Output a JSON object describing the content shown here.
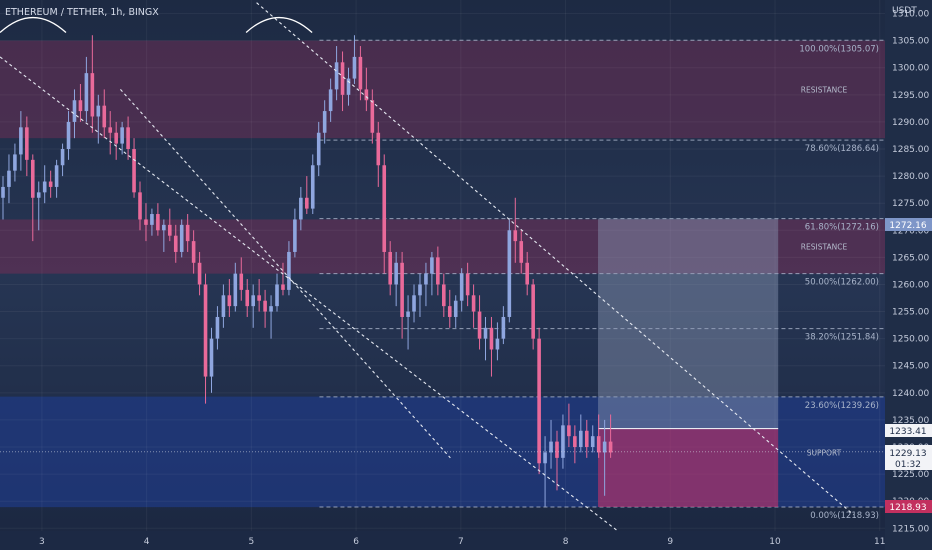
{
  "header": {
    "title": "ETHEREUM / TETHER, 1h, BINGX"
  },
  "price_axis": {
    "currency": "USDT",
    "ticks": [
      "1310.00",
      "1305.00",
      "1300.00",
      "1295.00",
      "1290.00",
      "1285.00",
      "1280.00",
      "1275.00",
      "1270.00",
      "1265.00",
      "1260.00",
      "1255.00",
      "1250.00",
      "1245.00",
      "1240.00",
      "1235.00",
      "1230.00",
      "1225.00",
      "1220.00",
      "1215.00"
    ]
  },
  "time_axis": {
    "ticks": [
      "3",
      "4",
      "5",
      "6",
      "7",
      "8",
      "9",
      "10",
      "11"
    ]
  },
  "badges": {
    "level_61": "1272.16",
    "tp": "1233.41",
    "last_price": "1229.13",
    "countdown": "01:32",
    "stop": "1218.93"
  },
  "zones": {
    "resistance_label": "RESISTANCE",
    "support_label": "SUPPORT"
  },
  "fib": [
    {
      "label": "100.00%(1305.07)",
      "price": 1305.07
    },
    {
      "label": "78.60%(1286.64)",
      "price": 1286.64
    },
    {
      "label": "61.80%(1272.16)",
      "price": 1272.16
    },
    {
      "label": "50.00%(1262.00)",
      "price": 1262.0
    },
    {
      "label": "38.20%(1251.84)",
      "price": 1251.84
    },
    {
      "label": "23.60%(1239.26)",
      "price": 1239.26
    },
    {
      "label": "0.00%(1218.93)",
      "price": 1218.93
    }
  ],
  "colors": {
    "background": "#1f2d47",
    "bull": "#8fa6df",
    "bear": "#e96a9a",
    "resistance_zone": "#6b2f55",
    "support_zone": "#1f3a86"
  },
  "chart_data": {
    "type": "candlestick",
    "title": "ETHEREUM / TETHER, 1h, BINGX",
    "y_unit": "USDT",
    "ylim": [
      1214.5,
      1312.5
    ],
    "xlim": [
      2.6,
      11.05
    ],
    "x_ticks": [
      3,
      4,
      5,
      6,
      7,
      8,
      9,
      10,
      11
    ],
    "last_price": 1229.13,
    "zones": [
      {
        "label": "RESISTANCE",
        "from": 1287.0,
        "to": 1305.0
      },
      {
        "label": "RESISTANCE",
        "from": 1262.0,
        "to": 1272.0
      },
      {
        "label": "SUPPORT",
        "from": 1218.9,
        "to": 1239.3
      }
    ],
    "fib_levels": [
      {
        "ratio": "100.00%",
        "price": 1305.07
      },
      {
        "ratio": "78.60%",
        "price": 1286.64
      },
      {
        "ratio": "61.80%",
        "price": 1272.16
      },
      {
        "ratio": "50.00%",
        "price": 1262.0
      },
      {
        "ratio": "38.20%",
        "price": 1251.84
      },
      {
        "ratio": "23.60%",
        "price": 1239.26
      },
      {
        "ratio": "0.00%",
        "price": 1218.93
      }
    ],
    "position": {
      "x_start": 8.31,
      "x_end": 10.03,
      "entry": 1233.41,
      "target": 1272.16,
      "stop": 1218.93
    },
    "trend_lines": [
      {
        "from": [
          2.6,
          1302.0
        ],
        "to": [
          8.6,
          1213.0
        ]
      },
      {
        "from": [
          3.75,
          1296.0
        ],
        "to": [
          6.9,
          1228.0
        ]
      },
      {
        "from": [
          5.05,
          1312.0
        ],
        "to": [
          10.75,
          1217.5
        ]
      }
    ],
    "arcs": [
      {
        "x_start": 2.6,
        "x_end": 3.23,
        "price": 1306.5
      },
      {
        "x_start": 4.95,
        "x_end": 5.58,
        "price": 1306.5
      }
    ],
    "candles": [
      {
        "o": 1276,
        "h": 1280,
        "l": 1272,
        "c": 1278
      },
      {
        "o": 1278,
        "h": 1284,
        "l": 1275,
        "c": 1281
      },
      {
        "o": 1281,
        "h": 1286,
        "l": 1279,
        "c": 1284
      },
      {
        "o": 1284,
        "h": 1292,
        "l": 1281,
        "c": 1289
      },
      {
        "o": 1289,
        "h": 1291,
        "l": 1280,
        "c": 1283
      },
      {
        "o": 1283,
        "h": 1284,
        "l": 1268,
        "c": 1276
      },
      {
        "o": 1276,
        "h": 1279,
        "l": 1270,
        "c": 1277
      },
      {
        "o": 1277,
        "h": 1282,
        "l": 1275,
        "c": 1279
      },
      {
        "o": 1279,
        "h": 1281,
        "l": 1276,
        "c": 1278
      },
      {
        "o": 1278,
        "h": 1283,
        "l": 1276,
        "c": 1282
      },
      {
        "o": 1282,
        "h": 1286,
        "l": 1280,
        "c": 1285
      },
      {
        "o": 1285,
        "h": 1292,
        "l": 1283,
        "c": 1290
      },
      {
        "o": 1290,
        "h": 1296,
        "l": 1287,
        "c": 1294
      },
      {
        "o": 1294,
        "h": 1297,
        "l": 1290,
        "c": 1292
      },
      {
        "o": 1292,
        "h": 1302,
        "l": 1290,
        "c": 1299
      },
      {
        "o": 1299,
        "h": 1306,
        "l": 1288,
        "c": 1291
      },
      {
        "o": 1291,
        "h": 1295,
        "l": 1286,
        "c": 1293
      },
      {
        "o": 1293,
        "h": 1296,
        "l": 1287,
        "c": 1289
      },
      {
        "o": 1289,
        "h": 1292,
        "l": 1284,
        "c": 1288
      },
      {
        "o": 1288,
        "h": 1290,
        "l": 1283,
        "c": 1286
      },
      {
        "o": 1286,
        "h": 1290,
        "l": 1284,
        "c": 1289
      },
      {
        "o": 1289,
        "h": 1291,
        "l": 1283,
        "c": 1285
      },
      {
        "o": 1285,
        "h": 1287,
        "l": 1276,
        "c": 1277
      },
      {
        "o": 1277,
        "h": 1279,
        "l": 1270,
        "c": 1272
      },
      {
        "o": 1272,
        "h": 1275,
        "l": 1268,
        "c": 1271
      },
      {
        "o": 1271,
        "h": 1274,
        "l": 1269,
        "c": 1273
      },
      {
        "o": 1273,
        "h": 1275,
        "l": 1269,
        "c": 1270
      },
      {
        "o": 1270,
        "h": 1272,
        "l": 1266,
        "c": 1271
      },
      {
        "o": 1271,
        "h": 1274,
        "l": 1268,
        "c": 1269
      },
      {
        "o": 1269,
        "h": 1271,
        "l": 1264,
        "c": 1266
      },
      {
        "o": 1266,
        "h": 1272,
        "l": 1265,
        "c": 1271
      },
      {
        "o": 1271,
        "h": 1273,
        "l": 1266,
        "c": 1268
      },
      {
        "o": 1268,
        "h": 1270,
        "l": 1262,
        "c": 1264
      },
      {
        "o": 1264,
        "h": 1266,
        "l": 1258,
        "c": 1260
      },
      {
        "o": 1260,
        "h": 1262,
        "l": 1238,
        "c": 1243
      },
      {
        "o": 1243,
        "h": 1252,
        "l": 1240,
        "c": 1250
      },
      {
        "o": 1250,
        "h": 1256,
        "l": 1248,
        "c": 1254
      },
      {
        "o": 1254,
        "h": 1260,
        "l": 1252,
        "c": 1258
      },
      {
        "o": 1258,
        "h": 1261,
        "l": 1254,
        "c": 1256
      },
      {
        "o": 1256,
        "h": 1264,
        "l": 1255,
        "c": 1262
      },
      {
        "o": 1262,
        "h": 1265,
        "l": 1257,
        "c": 1259
      },
      {
        "o": 1259,
        "h": 1261,
        "l": 1254,
        "c": 1256
      },
      {
        "o": 1256,
        "h": 1260,
        "l": 1252,
        "c": 1258
      },
      {
        "o": 1258,
        "h": 1261,
        "l": 1255,
        "c": 1257
      },
      {
        "o": 1257,
        "h": 1259,
        "l": 1252,
        "c": 1255
      },
      {
        "o": 1255,
        "h": 1258,
        "l": 1250,
        "c": 1256
      },
      {
        "o": 1256,
        "h": 1262,
        "l": 1255,
        "c": 1260
      },
      {
        "o": 1260,
        "h": 1264,
        "l": 1258,
        "c": 1259
      },
      {
        "o": 1259,
        "h": 1268,
        "l": 1258,
        "c": 1266
      },
      {
        "o": 1266,
        "h": 1274,
        "l": 1265,
        "c": 1272
      },
      {
        "o": 1272,
        "h": 1278,
        "l": 1270,
        "c": 1276
      },
      {
        "o": 1276,
        "h": 1280,
        "l": 1273,
        "c": 1274
      },
      {
        "o": 1274,
        "h": 1284,
        "l": 1273,
        "c": 1282
      },
      {
        "o": 1282,
        "h": 1290,
        "l": 1280,
        "c": 1288
      },
      {
        "o": 1288,
        "h": 1294,
        "l": 1286,
        "c": 1292
      },
      {
        "o": 1292,
        "h": 1298,
        "l": 1290,
        "c": 1296
      },
      {
        "o": 1296,
        "h": 1304,
        "l": 1294,
        "c": 1301
      },
      {
        "o": 1301,
        "h": 1303,
        "l": 1292,
        "c": 1295
      },
      {
        "o": 1295,
        "h": 1300,
        "l": 1293,
        "c": 1298
      },
      {
        "o": 1298,
        "h": 1306,
        "l": 1297,
        "c": 1302
      },
      {
        "o": 1302,
        "h": 1304,
        "l": 1294,
        "c": 1296
      },
      {
        "o": 1296,
        "h": 1300,
        "l": 1292,
        "c": 1294
      },
      {
        "o": 1294,
        "h": 1296,
        "l": 1286,
        "c": 1288
      },
      {
        "o": 1288,
        "h": 1290,
        "l": 1278,
        "c": 1282
      },
      {
        "o": 1282,
        "h": 1284,
        "l": 1262,
        "c": 1266
      },
      {
        "o": 1266,
        "h": 1268,
        "l": 1258,
        "c": 1260
      },
      {
        "o": 1260,
        "h": 1266,
        "l": 1256,
        "c": 1264
      },
      {
        "o": 1264,
        "h": 1266,
        "l": 1250,
        "c": 1254
      },
      {
        "o": 1254,
        "h": 1258,
        "l": 1248,
        "c": 1255
      },
      {
        "o": 1255,
        "h": 1260,
        "l": 1253,
        "c": 1258
      },
      {
        "o": 1258,
        "h": 1262,
        "l": 1254,
        "c": 1260
      },
      {
        "o": 1260,
        "h": 1264,
        "l": 1256,
        "c": 1262
      },
      {
        "o": 1262,
        "h": 1266,
        "l": 1258,
        "c": 1265
      },
      {
        "o": 1265,
        "h": 1267,
        "l": 1258,
        "c": 1260
      },
      {
        "o": 1260,
        "h": 1262,
        "l": 1254,
        "c": 1256
      },
      {
        "o": 1256,
        "h": 1259,
        "l": 1252,
        "c": 1254
      },
      {
        "o": 1254,
        "h": 1258,
        "l": 1252,
        "c": 1257
      },
      {
        "o": 1257,
        "h": 1263,
        "l": 1255,
        "c": 1262
      },
      {
        "o": 1262,
        "h": 1264,
        "l": 1256,
        "c": 1258
      },
      {
        "o": 1258,
        "h": 1260,
        "l": 1252,
        "c": 1255
      },
      {
        "o": 1255,
        "h": 1258,
        "l": 1248,
        "c": 1250
      },
      {
        "o": 1250,
        "h": 1254,
        "l": 1246,
        "c": 1252
      },
      {
        "o": 1252,
        "h": 1254,
        "l": 1243,
        "c": 1248
      },
      {
        "o": 1248,
        "h": 1253,
        "l": 1246,
        "c": 1250
      },
      {
        "o": 1250,
        "h": 1256,
        "l": 1249,
        "c": 1254
      },
      {
        "o": 1254,
        "h": 1272,
        "l": 1253,
        "c": 1270
      },
      {
        "o": 1270,
        "h": 1276,
        "l": 1264,
        "c": 1268
      },
      {
        "o": 1268,
        "h": 1270,
        "l": 1262,
        "c": 1264
      },
      {
        "o": 1264,
        "h": 1266,
        "l": 1258,
        "c": 1260
      },
      {
        "o": 1260,
        "h": 1261,
        "l": 1248,
        "c": 1250
      },
      {
        "o": 1250,
        "h": 1252,
        "l": 1225,
        "c": 1227
      },
      {
        "o": 1227,
        "h": 1232,
        "l": 1219,
        "c": 1229
      },
      {
        "o": 1229,
        "h": 1235,
        "l": 1226,
        "c": 1231
      },
      {
        "o": 1231,
        "h": 1233,
        "l": 1222,
        "c": 1228
      },
      {
        "o": 1228,
        "h": 1236,
        "l": 1226,
        "c": 1234
      },
      {
        "o": 1234,
        "h": 1238,
        "l": 1230,
        "c": 1232
      },
      {
        "o": 1232,
        "h": 1234,
        "l": 1227,
        "c": 1230
      },
      {
        "o": 1230,
        "h": 1236,
        "l": 1229,
        "c": 1233
      },
      {
        "o": 1233,
        "h": 1235,
        "l": 1228,
        "c": 1230
      },
      {
        "o": 1230,
        "h": 1234,
        "l": 1229,
        "c": 1232
      },
      {
        "o": 1232,
        "h": 1236,
        "l": 1228,
        "c": 1229
      },
      {
        "o": 1229,
        "h": 1235,
        "l": 1221,
        "c": 1231
      },
      {
        "o": 1231,
        "h": 1236,
        "l": 1228,
        "c": 1229
      }
    ]
  }
}
